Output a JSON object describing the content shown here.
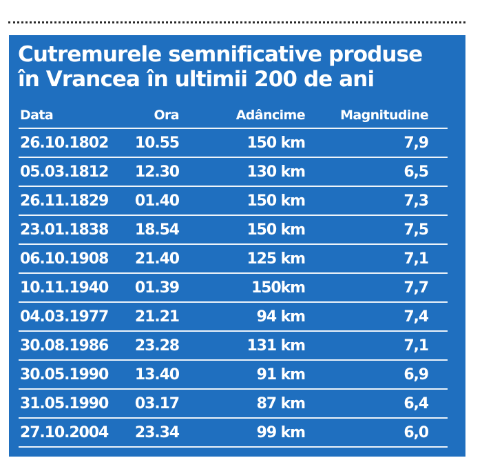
{
  "title": {
    "line1": "Cutremurele semnificative produse",
    "line2": "în Vrancea în ultimii 200 de ani"
  },
  "table": {
    "headers": {
      "date": "Data",
      "time": "Ora",
      "depth": "Adâncime",
      "magnitude": "Magnitudine"
    },
    "rows": [
      {
        "date": "26.10.1802",
        "time": "10.55",
        "depth": "150 km",
        "magnitude": "7,9"
      },
      {
        "date": "05.03.1812",
        "time": "12.30",
        "depth": "130 km",
        "magnitude": "6,5"
      },
      {
        "date": "26.11.1829",
        "time": "01.40",
        "depth": "150 km",
        "magnitude": "7,3"
      },
      {
        "date": "23.01.1838",
        "time": "18.54",
        "depth": "150 km",
        "magnitude": "7,5"
      },
      {
        "date": "06.10.1908",
        "time": "21.40",
        "depth": "125 km",
        "magnitude": "7,1"
      },
      {
        "date": "10.11.1940",
        "time": "01.39",
        "depth": "150km",
        "magnitude": "7,7"
      },
      {
        "date": "04.03.1977",
        "time": "21.21",
        "depth": "94 km",
        "magnitude": "7,4"
      },
      {
        "date": "30.08.1986",
        "time": "23.28",
        "depth": "131 km",
        "magnitude": "7,1"
      },
      {
        "date": "30.05.1990",
        "time": "13.40",
        "depth": "91 km",
        "magnitude": "6,9"
      },
      {
        "date": "31.05.1990",
        "time": "03.17",
        "depth": "87 km",
        "magnitude": "6,4"
      },
      {
        "date": "27.10.2004",
        "time": "23.34",
        "depth": "99 km",
        "magnitude": "6,0"
      }
    ]
  },
  "colors": {
    "panel_background": "#1f6fbf",
    "text": "#ffffff",
    "dotted_rule": "#2a2a2a"
  }
}
